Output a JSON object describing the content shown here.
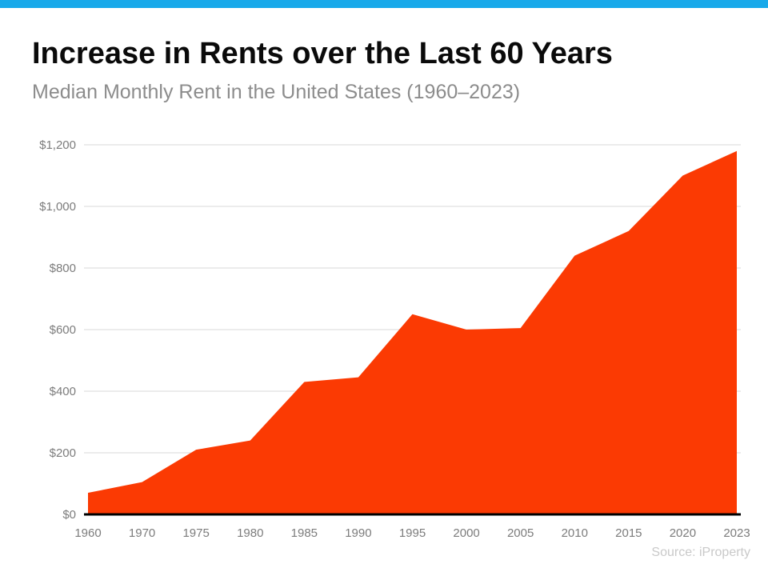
{
  "page": {
    "title": "Increase in Rents over the Last 60 Years",
    "subtitle": "Median Monthly Rent in the United States (1960–2023)",
    "source": "Source: iProperty",
    "accent_bar_color": "#18a9ea"
  },
  "chart_data": {
    "type": "area",
    "title": "Increase in Rents over the Last 60 Years",
    "subtitle": "Median Monthly Rent in the United States (1960–2023)",
    "series_name": "Median Monthly Rent (USD)",
    "categories": [
      "1960",
      "1970",
      "1975",
      "1980",
      "1985",
      "1990",
      "1995",
      "2000",
      "2005",
      "2010",
      "2015",
      "2020",
      "2023"
    ],
    "values": [
      70,
      105,
      210,
      240,
      430,
      445,
      650,
      600,
      605,
      840,
      920,
      1100,
      1180
    ],
    "xlabel": "",
    "ylabel": "",
    "ylim": [
      0,
      1200
    ],
    "y_tick_values": [
      0,
      200,
      400,
      600,
      800,
      1000,
      1200
    ],
    "y_tick_labels": [
      "$0",
      "$200",
      "$400",
      "$600",
      "$800",
      "$1,000",
      "$1,200"
    ],
    "grid": true,
    "legend_position": "none",
    "colors": {
      "area_fill": "#fb3a03",
      "gridline": "#d9d9d9",
      "axis_baseline": "#000000",
      "tick_label": "#7c7c7c"
    },
    "source": "Source: iProperty"
  }
}
